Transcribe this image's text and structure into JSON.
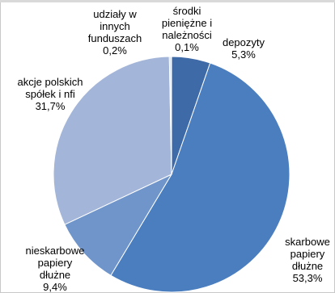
{
  "chart_data": {
    "type": "pie",
    "title": "",
    "slices": [
      {
        "key": "depozyty",
        "lines": [
          "depozyty",
          "5,3%"
        ],
        "value": 5.3,
        "color": "#3f6aa8"
      },
      {
        "key": "skarbowe",
        "lines": [
          "skarbowe",
          "papiery",
          "dłużne",
          "53,3%"
        ],
        "value": 53.3,
        "color": "#4a7ebf"
      },
      {
        "key": "nieskarbowe",
        "lines": [
          "nieskarbowe",
          "papiery",
          "dłużne",
          "9,4%"
        ],
        "value": 9.4,
        "color": "#6f95cb"
      },
      {
        "key": "akcje",
        "lines": [
          "akcje polskich",
          "spółek i nfi",
          "31,7%"
        ],
        "value": 31.7,
        "color": "#a3b5d8"
      },
      {
        "key": "udzialy",
        "lines": [
          "udziały w",
          "innych",
          "funduszach",
          "0,2%"
        ],
        "value": 0.2,
        "color": "#b9c7e0"
      },
      {
        "key": "srodki",
        "lines": [
          "środki",
          "pieniężne i",
          "należności",
          "0,1%"
        ],
        "value": 0.1,
        "color": "#2f4f80"
      }
    ]
  }
}
